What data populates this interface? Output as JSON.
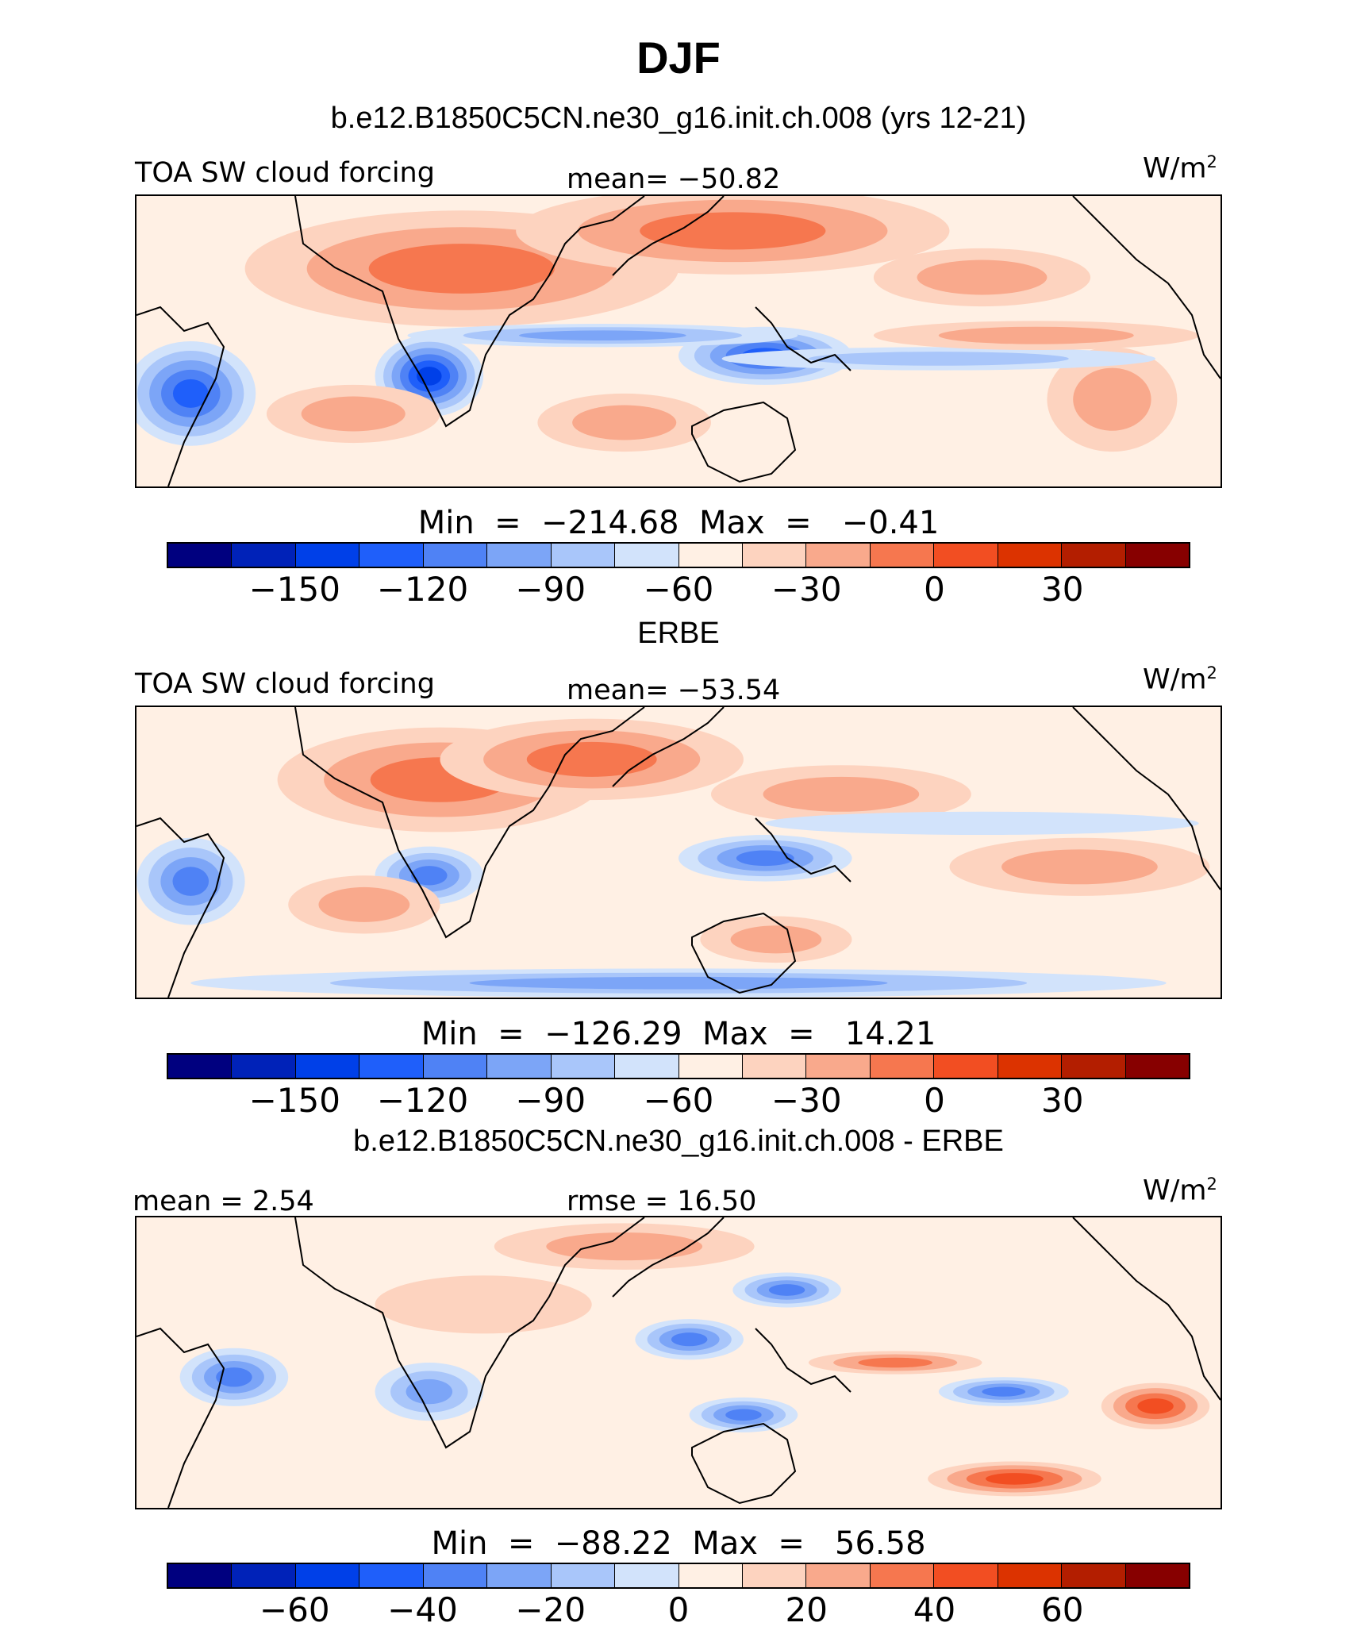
{
  "title": "DJF",
  "palette": [
    "#00007f",
    "#0022b8",
    "#0040e8",
    "#1f5ffa",
    "#4f82f5",
    "#7ca5f7",
    "#a9c6fa",
    "#d2e3fb",
    "#fff0e4",
    "#fdd3bf",
    "#f9a98c",
    "#f6774f",
    "#f24e22",
    "#dc3300",
    "#b31e00",
    "#870000"
  ],
  "panels": [
    {
      "case_title": "b.e12.B1850C5CN.ne30_g16.init.ch.008 (yrs 12-21)",
      "left_label": "TOA SW cloud forcing",
      "center_label": "mean= −50.82",
      "units": "W/m",
      "units_sup": "2",
      "minmax": "Min  =  −214.68  Max  =   −0.41",
      "colorbar_ticks": [
        "−150",
        "−120",
        "−90",
        "−60",
        "−30",
        "0",
        "30"
      ],
      "map_style": "model"
    },
    {
      "case_title": "ERBE",
      "left_label": "TOA SW cloud forcing",
      "center_label": "mean= −53.54",
      "units": "W/m",
      "units_sup": "2",
      "minmax": "Min  =  −126.29  Max  =   14.21",
      "colorbar_ticks": [
        "−150",
        "−120",
        "−90",
        "−60",
        "−30",
        "0",
        "30"
      ],
      "map_style": "obs"
    },
    {
      "case_title": "b.e12.B1850C5CN.ne30_g16.init.ch.008 - ERBE",
      "left_label": "mean =    2.54",
      "center_label": "rmse =   16.50",
      "units": "W/m",
      "units_sup": "2",
      "minmax": "Min  =  −88.22  Max  =   56.58",
      "colorbar_ticks": [
        "−60",
        "−40",
        "−20",
        "0",
        "20",
        "40",
        "60"
      ],
      "map_style": "diff"
    }
  ]
}
